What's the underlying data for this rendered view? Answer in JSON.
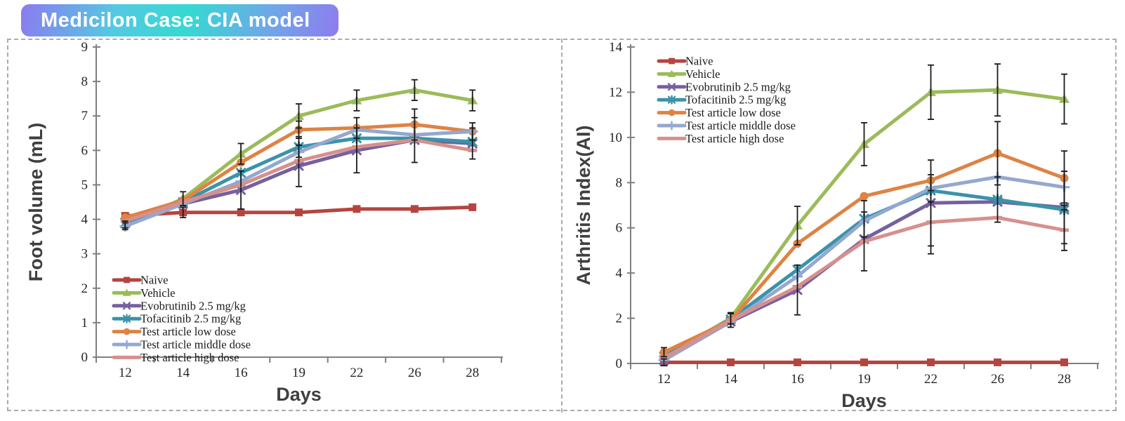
{
  "header": {
    "title": "Medicilon Case: CIA model"
  },
  "chart_data": [
    {
      "type": "line",
      "name": "foot-volume",
      "xlabel": "Days",
      "ylabel": "Foot volume (mL)",
      "categories": [
        "12",
        "14",
        "16",
        "19",
        "22",
        "26",
        "28"
      ],
      "ylim": [
        0,
        9
      ],
      "ytick_step": 1,
      "legend_position": "inside-bottom-left",
      "grid": false,
      "series": [
        {
          "name": "Naive",
          "color": "#B5443F",
          "marker": "square",
          "values": [
            4.1,
            4.2,
            4.2,
            4.2,
            4.3,
            4.3,
            4.35
          ],
          "err": [
            0,
            0.15,
            0,
            0,
            0,
            0,
            0
          ]
        },
        {
          "name": "Vehicle",
          "color": "#9BBB59",
          "marker": "triangle",
          "values": [
            3.85,
            4.6,
            5.9,
            7.0,
            7.45,
            7.75,
            7.45
          ],
          "err": [
            0.1,
            0.2,
            0.3,
            0.35,
            0.3,
            0.3,
            0.3
          ]
        },
        {
          "name": "Evobrutinib 2.5 mg/kg",
          "color": "#7560A0",
          "marker": "x",
          "values": [
            3.9,
            4.45,
            4.85,
            5.55,
            6.0,
            6.3,
            6.2
          ],
          "err": [
            0,
            0,
            0.55,
            0.6,
            0.65,
            0.65,
            0.45
          ]
        },
        {
          "name": "Tofacitinib 2.5 mg/kg",
          "color": "#3A93A9",
          "marker": "asterisk",
          "values": [
            3.9,
            4.5,
            5.35,
            6.1,
            6.35,
            6.35,
            6.25
          ],
          "err": [
            0,
            0,
            0,
            0.3,
            0,
            0,
            0
          ]
        },
        {
          "name": "Test article low dose",
          "color": "#DE8344",
          "marker": "circle",
          "values": [
            4.05,
            4.55,
            5.65,
            6.6,
            6.65,
            6.75,
            6.55
          ],
          "err": [
            0,
            0,
            0,
            0.25,
            0.3,
            0.45,
            0.25
          ]
        },
        {
          "name": "Test article middle dose",
          "color": "#94A8D0",
          "marker": "plus",
          "values": [
            3.8,
            4.45,
            5.1,
            5.95,
            6.6,
            6.45,
            6.55
          ],
          "err": [
            0.1,
            0,
            0,
            0,
            0,
            0,
            0
          ]
        },
        {
          "name": "Test article high dose",
          "color": "#D6908D",
          "marker": "dash",
          "values": [
            3.95,
            4.5,
            5.0,
            5.7,
            6.1,
            6.3,
            6.0
          ],
          "err": [
            0,
            0,
            0,
            0,
            0,
            0,
            0
          ]
        }
      ]
    },
    {
      "type": "line",
      "name": "arthritis-index",
      "xlabel": "Days",
      "ylabel": "Arthritis Index(AI)",
      "categories": [
        "12",
        "14",
        "16",
        "19",
        "22",
        "26",
        "28"
      ],
      "ylim": [
        0,
        14
      ],
      "ytick_step": 2,
      "legend_position": "inside-top-left",
      "grid": false,
      "series": [
        {
          "name": "Naive",
          "color": "#B5443F",
          "marker": "square",
          "values": [
            0.05,
            0.05,
            0.05,
            0.05,
            0.05,
            0.05,
            0.05
          ],
          "err": [
            0.15,
            0,
            0,
            0,
            0,
            0,
            0
          ]
        },
        {
          "name": "Vehicle",
          "color": "#9BBB59",
          "marker": "triangle",
          "values": [
            0.3,
            2.0,
            6.1,
            9.7,
            12.0,
            12.1,
            11.7
          ],
          "err": [
            0,
            0.25,
            0.85,
            0.95,
            1.2,
            1.15,
            1.1
          ]
        },
        {
          "name": "Evobrutinib 2.5 mg/kg",
          "color": "#7560A0",
          "marker": "x",
          "values": [
            0.15,
            1.85,
            3.25,
            5.5,
            7.1,
            7.15,
            6.9
          ],
          "err": [
            0,
            0,
            1.1,
            0,
            1.9,
            0,
            1.6
          ]
        },
        {
          "name": "Tofacitinib 2.5 mg/kg",
          "color": "#3A93A9",
          "marker": "asterisk",
          "values": [
            0.3,
            1.95,
            4.15,
            6.4,
            7.65,
            7.25,
            6.8
          ],
          "err": [
            0,
            0,
            0,
            0.8,
            0,
            1.0,
            0
          ]
        },
        {
          "name": "Test article low dose",
          "color": "#DE8344",
          "marker": "circle",
          "values": [
            0.5,
            1.9,
            5.3,
            7.4,
            8.1,
            9.3,
            8.2
          ],
          "err": [
            0.2,
            0.3,
            0,
            0,
            0,
            1.4,
            1.2
          ]
        },
        {
          "name": "Test article middle dose",
          "color": "#94A8D0",
          "marker": "plus",
          "values": [
            0.15,
            1.85,
            3.85,
            6.3,
            7.75,
            8.25,
            7.8
          ],
          "err": [
            0,
            0,
            0,
            0,
            0.6,
            0,
            0.7
          ]
        },
        {
          "name": "Test article high dose",
          "color": "#D6908D",
          "marker": "dash",
          "values": [
            0.25,
            1.9,
            3.4,
            5.4,
            6.25,
            6.45,
            5.9
          ],
          "err": [
            0,
            0,
            0,
            1.3,
            1.4,
            0,
            0.9
          ]
        }
      ]
    }
  ]
}
